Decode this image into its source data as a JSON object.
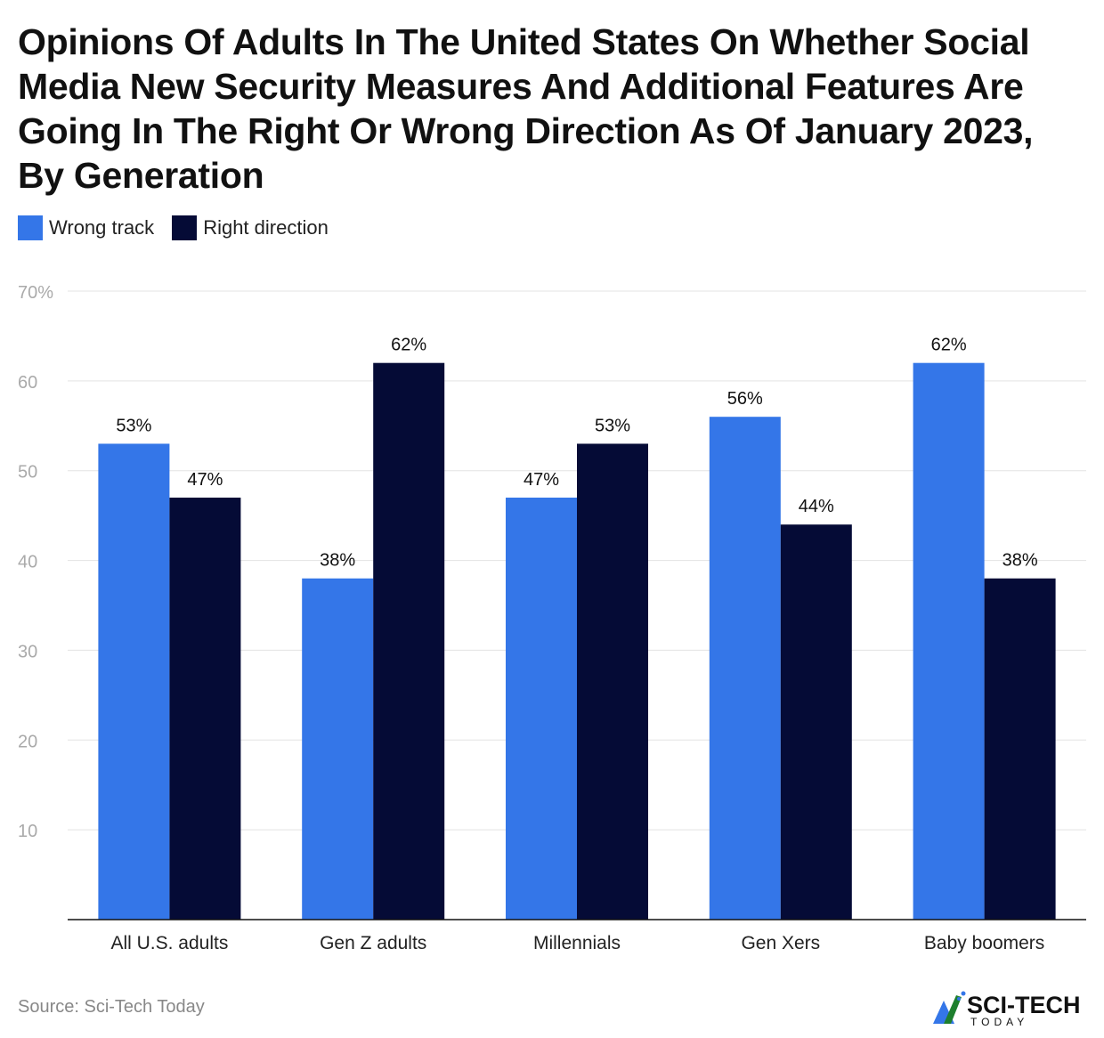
{
  "chart_data": {
    "type": "bar",
    "title": "Opinions Of Adults In The United States On Whether Social Media New Security Measures And Additional Features Are Going In The Right Or Wrong Direction As Of January 2023, By Generation",
    "categories": [
      "All U.S. adults",
      "Gen Z adults",
      "Millennials",
      "Gen Xers",
      "Baby boomers"
    ],
    "series": [
      {
        "name": "Wrong track",
        "color": "#3476E8",
        "values": [
          53,
          38,
          47,
          56,
          62
        ]
      },
      {
        "name": "Right direction",
        "color": "#050B36",
        "values": [
          47,
          62,
          53,
          44,
          38
        ]
      }
    ],
    "data_label_suffix": "%",
    "ylim": [
      0,
      70
    ],
    "yticks": [
      10,
      20,
      30,
      40,
      50,
      60,
      70
    ],
    "ytick_labels": [
      "10",
      "20",
      "30",
      "40",
      "50",
      "60",
      "70%"
    ],
    "grid": true,
    "legend_position": "top-left",
    "xlabel": "",
    "ylabel": ""
  },
  "source": "Source: Sci-Tech Today",
  "logo": {
    "text": "SCI-TECH",
    "subtext": "TODAY"
  }
}
